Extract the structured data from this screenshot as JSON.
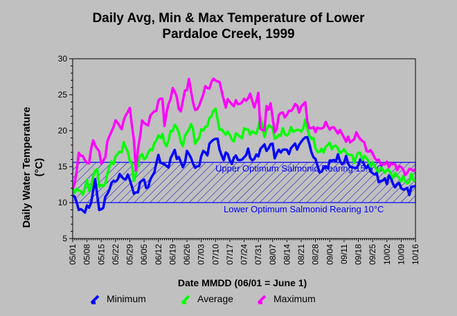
{
  "chart_data": {
    "type": "line",
    "title": "Daily Avg, Min & Max Temperature of Lower",
    "subtitle": "Pardaloe Creek, 1999",
    "xlabel": "Date MMDD (06/01 = June 1)",
    "ylabel": "Daily Water Temperature (°C)",
    "ylim": [
      5,
      30
    ],
    "yticks": [
      "5",
      "10",
      "15",
      "20",
      "25",
      "30"
    ],
    "x_tick_labels": [
      "05/01",
      "05/08",
      "05/15",
      "05/22",
      "05/29",
      "06/05",
      "06/12",
      "06/19",
      "06/26",
      "07/03",
      "07/10",
      "07/17",
      "07/24",
      "07/31",
      "08/07",
      "08/14",
      "08/21",
      "08/28",
      "09/04",
      "09/11",
      "09/18",
      "09/25",
      "10/02",
      "10/09",
      "10/16"
    ],
    "x_days": [
      "05/01",
      "10/16"
    ],
    "optimum_band": {
      "lower": 10,
      "upper": 15.6,
      "upper_label": "Upper Optimum Salmonid Rearing 15.6°C",
      "lower_label": "Lower Optimum Salmonid Rearing 10°C"
    },
    "series": [
      {
        "name": "Minimum",
        "color": "#0000ff",
        "anchors": [
          [
            0,
            11.0
          ],
          [
            2,
            10
          ],
          [
            4,
            8.8
          ],
          [
            6,
            8.7
          ],
          [
            7,
            10
          ],
          [
            8,
            8.8
          ],
          [
            9,
            10
          ],
          [
            11,
            13.5
          ],
          [
            12,
            10.5
          ],
          [
            13,
            9.2
          ],
          [
            15,
            9.3
          ],
          [
            17,
            11.5
          ],
          [
            19,
            12.5
          ],
          [
            21,
            13.2
          ],
          [
            24,
            13.7
          ],
          [
            26,
            13.3
          ],
          [
            28,
            13.5
          ],
          [
            30,
            11.2
          ],
          [
            31,
            11.0
          ],
          [
            33,
            12.8
          ],
          [
            35,
            13.0
          ],
          [
            37,
            12.0
          ],
          [
            39,
            13.8
          ],
          [
            40,
            14.5
          ],
          [
            42,
            16.3
          ],
          [
            44,
            15.5
          ],
          [
            46,
            14.8
          ],
          [
            48,
            16.0
          ],
          [
            50,
            17.2
          ],
          [
            52,
            16.0
          ],
          [
            54,
            15.0
          ],
          [
            56,
            16.8
          ],
          [
            58,
            16.5
          ],
          [
            60,
            14.5
          ],
          [
            62,
            15.5
          ],
          [
            64,
            17.0
          ],
          [
            66,
            17.0
          ],
          [
            68,
            18.5
          ],
          [
            70,
            19.2
          ],
          [
            72,
            17.5
          ],
          [
            74,
            16.0
          ],
          [
            76,
            17.0
          ],
          [
            78,
            15.2
          ],
          [
            80,
            16.8
          ],
          [
            82,
            15.5
          ],
          [
            84,
            16.5
          ],
          [
            86,
            17.0
          ],
          [
            88,
            16.0
          ],
          [
            90,
            16.2
          ],
          [
            92,
            17.5
          ],
          [
            94,
            17.8
          ],
          [
            96,
            17.5
          ],
          [
            98,
            18.2
          ],
          [
            99,
            16.5
          ],
          [
            101,
            17.0
          ],
          [
            103,
            17.5
          ],
          [
            105,
            17.0
          ],
          [
            107,
            17.5
          ],
          [
            109,
            18.0
          ],
          [
            111,
            17.8
          ],
          [
            113,
            18.8
          ],
          [
            114,
            19.5
          ],
          [
            116,
            18.0
          ],
          [
            118,
            16.5
          ],
          [
            120,
            15.0
          ],
          [
            122,
            14.2
          ],
          [
            124,
            15.0
          ],
          [
            126,
            15.5
          ],
          [
            128,
            16.0
          ],
          [
            130,
            16.2
          ],
          [
            132,
            15.5
          ],
          [
            134,
            16.0
          ],
          [
            136,
            15.2
          ],
          [
            138,
            14.5
          ],
          [
            140,
            15.5
          ],
          [
            142,
            15.8
          ],
          [
            144,
            15.0
          ],
          [
            146,
            14.5
          ],
          [
            148,
            14.0
          ],
          [
            150,
            13.2
          ],
          [
            152,
            13.0
          ],
          [
            154,
            13.0
          ],
          [
            155,
            13.8
          ],
          [
            157,
            12.5
          ],
          [
            159,
            12.5
          ],
          [
            161,
            12.2
          ],
          [
            163,
            11.8
          ],
          [
            165,
            11.5
          ],
          [
            166,
            12.2
          ],
          [
            168,
            12.0
          ]
        ]
      },
      {
        "name": "Average",
        "color": "#00ff00",
        "anchors": [
          [
            0,
            11.5
          ],
          [
            2,
            12
          ],
          [
            4,
            11.2
          ],
          [
            6,
            12
          ],
          [
            7,
            13
          ],
          [
            8,
            11.5
          ],
          [
            10,
            13.5
          ],
          [
            12,
            14.8
          ],
          [
            13,
            12.5
          ],
          [
            15,
            12.0
          ],
          [
            17,
            14.0
          ],
          [
            19,
            15.5
          ],
          [
            21,
            16.2
          ],
          [
            23,
            17.0
          ],
          [
            25,
            18.0
          ],
          [
            27,
            17.2
          ],
          [
            29,
            15.0
          ],
          [
            30,
            13.0
          ],
          [
            32,
            15.5
          ],
          [
            34,
            16.8
          ],
          [
            36,
            16.0
          ],
          [
            38,
            17.5
          ],
          [
            40,
            17.8
          ],
          [
            42,
            19.5
          ],
          [
            44,
            19.0
          ],
          [
            46,
            18.0
          ],
          [
            48,
            19.5
          ],
          [
            50,
            21.0
          ],
          [
            52,
            19.5
          ],
          [
            54,
            18.0
          ],
          [
            56,
            19.8
          ],
          [
            58,
            21.0
          ],
          [
            60,
            18.5
          ],
          [
            62,
            19.0
          ],
          [
            64,
            20.5
          ],
          [
            66,
            20.5
          ],
          [
            68,
            22.5
          ],
          [
            70,
            22.8
          ],
          [
            72,
            20.5
          ],
          [
            74,
            19.5
          ],
          [
            76,
            20.0
          ],
          [
            78,
            18.5
          ],
          [
            80,
            19.5
          ],
          [
            82,
            19.0
          ],
          [
            84,
            20.0
          ],
          [
            86,
            20.2
          ],
          [
            88,
            19.5
          ],
          [
            90,
            19.8
          ],
          [
            92,
            21.5
          ],
          [
            94,
            19.5
          ],
          [
            96,
            20.5
          ],
          [
            98,
            20.8
          ],
          [
            99,
            18.5
          ],
          [
            101,
            19.5
          ],
          [
            103,
            19.8
          ],
          [
            105,
            19.5
          ],
          [
            107,
            20.0
          ],
          [
            109,
            20.2
          ],
          [
            111,
            19.8
          ],
          [
            113,
            20.5
          ],
          [
            114,
            21.2
          ],
          [
            116,
            19.5
          ],
          [
            118,
            18.5
          ],
          [
            120,
            17.2
          ],
          [
            122,
            17.0
          ],
          [
            124,
            17.8
          ],
          [
            126,
            18.0
          ],
          [
            128,
            17.8
          ],
          [
            130,
            17.5
          ],
          [
            132,
            17.0
          ],
          [
            134,
            17.2
          ],
          [
            136,
            16.5
          ],
          [
            138,
            16.0
          ],
          [
            140,
            16.8
          ],
          [
            142,
            16.5
          ],
          [
            144,
            16.0
          ],
          [
            146,
            15.5
          ],
          [
            148,
            15.0
          ],
          [
            150,
            14.5
          ],
          [
            152,
            14.5
          ],
          [
            154,
            14.5
          ],
          [
            156,
            14.0
          ],
          [
            158,
            13.8
          ],
          [
            160,
            13.5
          ],
          [
            162,
            13.2
          ],
          [
            164,
            12.8
          ],
          [
            166,
            13.5
          ],
          [
            168,
            13.2
          ]
        ]
      },
      {
        "name": "Maximum",
        "color": "#ff00ff",
        "anchors": [
          [
            0,
            12.0
          ],
          [
            2,
            14
          ],
          [
            3,
            17
          ],
          [
            5,
            16.5
          ],
          [
            6,
            15.5
          ],
          [
            8,
            15.8
          ],
          [
            10,
            18.5
          ],
          [
            12,
            17.8
          ],
          [
            14,
            15.5
          ],
          [
            16,
            16.5
          ],
          [
            18,
            19.5
          ],
          [
            20,
            20.5
          ],
          [
            22,
            21.5
          ],
          [
            24,
            20.0
          ],
          [
            26,
            22.5
          ],
          [
            28,
            22.8
          ],
          [
            30,
            19.0
          ],
          [
            31,
            14.5
          ],
          [
            33,
            19.5
          ],
          [
            34,
            21.5
          ],
          [
            36,
            20.5
          ],
          [
            38,
            22.0
          ],
          [
            40,
            22.5
          ],
          [
            42,
            24.0
          ],
          [
            44,
            24.5
          ],
          [
            45,
            21.0
          ],
          [
            47,
            23.5
          ],
          [
            49,
            26.0
          ],
          [
            51,
            24.5
          ],
          [
            53,
            22.5
          ],
          [
            55,
            25.5
          ],
          [
            57,
            26.8
          ],
          [
            59,
            24.0
          ],
          [
            61,
            22.5
          ],
          [
            63,
            24.5
          ],
          [
            65,
            25.8
          ],
          [
            67,
            26.2
          ],
          [
            69,
            27.0
          ],
          [
            71,
            27.2
          ],
          [
            73,
            25.5
          ],
          [
            75,
            23.5
          ],
          [
            77,
            24.2
          ],
          [
            79,
            23.5
          ],
          [
            81,
            24.0
          ],
          [
            83,
            23.8
          ],
          [
            85,
            24.5
          ],
          [
            87,
            24.8
          ],
          [
            89,
            23.5
          ],
          [
            91,
            24.8
          ],
          [
            92,
            20.5
          ],
          [
            94,
            20.0
          ],
          [
            95,
            23.0
          ],
          [
            97,
            23.8
          ],
          [
            99,
            19.5
          ],
          [
            101,
            22.0
          ],
          [
            103,
            22.5
          ],
          [
            105,
            22.0
          ],
          [
            107,
            23.0
          ],
          [
            109,
            23.5
          ],
          [
            111,
            23.0
          ],
          [
            113,
            23.5
          ],
          [
            114,
            23.8
          ],
          [
            116,
            20.0
          ],
          [
            118,
            20.5
          ],
          [
            120,
            20.0
          ],
          [
            122,
            20.5
          ],
          [
            124,
            20.8
          ],
          [
            126,
            20.5
          ],
          [
            128,
            20.2
          ],
          [
            130,
            20.0
          ],
          [
            132,
            19.5
          ],
          [
            134,
            18.8
          ],
          [
            136,
            18.5
          ],
          [
            138,
            19.0
          ],
          [
            140,
            19.5
          ],
          [
            142,
            18.5
          ],
          [
            144,
            17.5
          ],
          [
            146,
            17.0
          ],
          [
            148,
            16.5
          ],
          [
            150,
            15.5
          ],
          [
            152,
            15.5
          ],
          [
            154,
            15.2
          ],
          [
            156,
            15.5
          ],
          [
            158,
            15.0
          ],
          [
            160,
            15.0
          ],
          [
            162,
            14.5
          ],
          [
            164,
            14.0
          ],
          [
            166,
            14.8
          ],
          [
            168,
            14.5
          ]
        ]
      }
    ],
    "legend": [
      "Minimum",
      "Average",
      "Maximum"
    ],
    "legend_position": "bottom",
    "grid": false
  }
}
